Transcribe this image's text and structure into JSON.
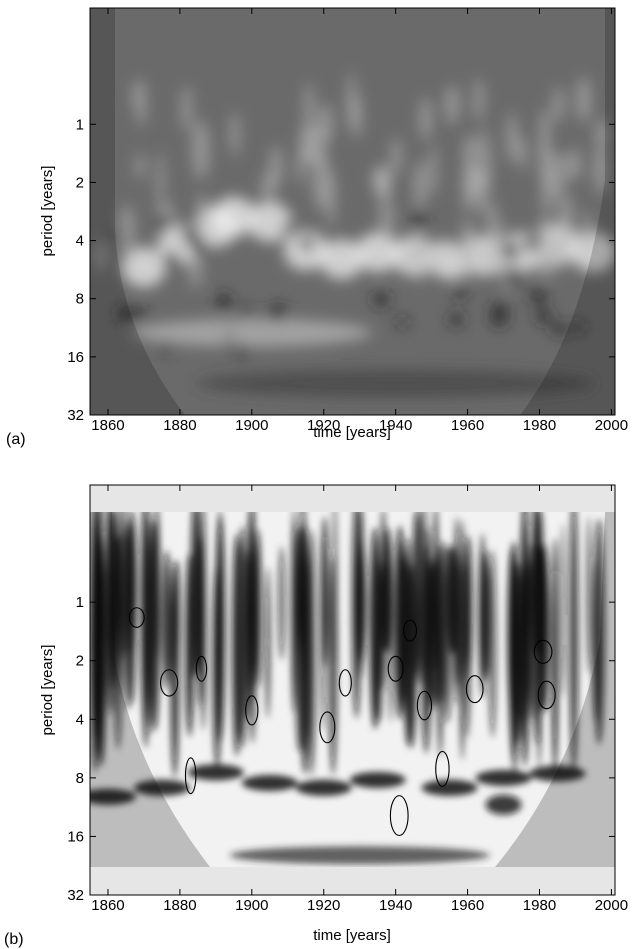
{
  "chart_data": [
    {
      "panel_label": "(a)",
      "type": "heatmap",
      "title": "",
      "xlabel": "time [years]",
      "ylabel": "period [years]",
      "xlim": [
        1855,
        2001
      ],
      "ylim_log2": [
        0.25,
        32
      ],
      "x_ticks": [
        1860,
        1880,
        1900,
        1920,
        1940,
        1960,
        1980,
        2000
      ],
      "y_ticks": [
        1,
        2,
        4,
        8,
        16,
        32
      ],
      "y_scale": "log2",
      "colormap": "grayscale",
      "cone_of_influence": true,
      "contours": false
    },
    {
      "panel_label": "(b)",
      "type": "heatmap",
      "title": "",
      "xlabel": "time [years]",
      "ylabel": "period [years]",
      "xlim": [
        1855,
        2001
      ],
      "ylim_log2": [
        0.25,
        32
      ],
      "x_ticks": [
        1860,
        1880,
        1900,
        1920,
        1940,
        1960,
        1980,
        2000
      ],
      "y_ticks": [
        1,
        2,
        4,
        8,
        16,
        32
      ],
      "y_scale": "log2",
      "colormap": "grayscale",
      "cone_of_influence": true,
      "contours": true,
      "contour_regions": [
        {
          "x": 1868,
          "period": 1.2
        },
        {
          "x": 1886,
          "period": 2.2
        },
        {
          "x": 1877,
          "period": 2.6
        },
        {
          "x": 1921,
          "period": 4.4
        },
        {
          "x": 1926,
          "period": 2.6
        },
        {
          "x": 1940,
          "period": 2.2
        },
        {
          "x": 1944,
          "period": 1.4
        },
        {
          "x": 1948,
          "period": 3.4
        },
        {
          "x": 1953,
          "period": 7.2
        },
        {
          "x": 1941,
          "period": 12.5
        },
        {
          "x": 1962,
          "period": 2.8
        },
        {
          "x": 1981,
          "period": 1.8
        },
        {
          "x": 1982,
          "period": 3.0
        },
        {
          "x": 1883,
          "period": 7.8
        },
        {
          "x": 1900,
          "period": 3.6
        }
      ]
    }
  ]
}
